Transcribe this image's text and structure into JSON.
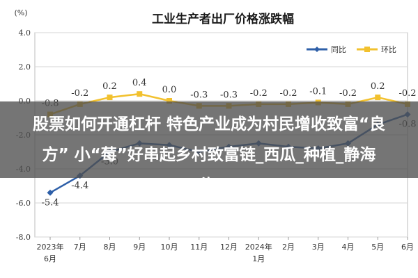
{
  "chart_data": {
    "type": "line",
    "title": "工业生产者出厂价格涨跌幅",
    "ylabel": "(%)",
    "ylim": [
      -8.0,
      4.0
    ],
    "yticks": [
      "4.0",
      "2.0",
      "0.0",
      "-2.0",
      "-4.0",
      "-6.0",
      "-8.0"
    ],
    "grid": true,
    "legend_position": "top-right",
    "x_labels": [
      [
        "2023年",
        "6月"
      ],
      [
        "7月"
      ],
      [
        "8月"
      ],
      [
        "9月"
      ],
      [
        "10月"
      ],
      [
        "11月"
      ],
      [
        "12月"
      ],
      [
        "2024年",
        "1月"
      ],
      [
        "2月"
      ],
      [
        "3月"
      ],
      [
        "4月"
      ],
      [
        "5月"
      ],
      [
        "6月"
      ]
    ],
    "series": [
      {
        "name": "同比",
        "color": "#2e5fa8",
        "values": [
          -5.4,
          -4.4,
          -3.0,
          -2.5,
          -2.6,
          -3.0,
          -2.7,
          -2.5,
          -2.7,
          -2.8,
          -2.5,
          -1.4,
          -0.8
        ],
        "labels": [
          "-5.4",
          "-4.4",
          "-3.0",
          "",
          "",
          "",
          "",
          "",
          "",
          "",
          "",
          "",
          "-0.8"
        ]
      },
      {
        "name": "环比",
        "color": "#f2c12e",
        "values": [
          -0.8,
          -0.2,
          0.2,
          0.4,
          0.0,
          -0.3,
          -0.3,
          -0.2,
          -0.2,
          -0.1,
          -0.2,
          0.2,
          -0.2
        ],
        "labels": [
          "-0.8",
          "-0.2",
          "0.2",
          "0.4",
          "0.0",
          "-0.3",
          "-0.3",
          "-0.2",
          "-0.2",
          "-0.1",
          "-0.2",
          "0.2",
          "-0.2"
        ]
      }
    ]
  },
  "banner": {
    "line1": "股票如何开通杠杆 特色产业成为村民增收致富“良",
    "line2": "方” 小“莓”好串起乡村致富链_西瓜_种植_静海",
    "line3": "海"
  }
}
